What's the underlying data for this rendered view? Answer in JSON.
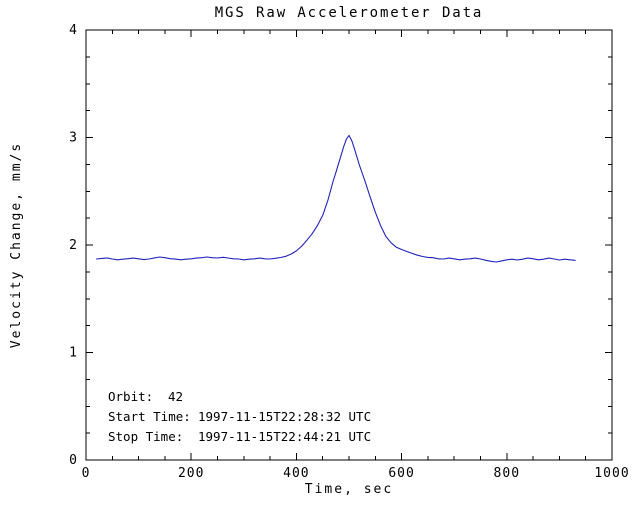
{
  "page": {
    "background": "#ffffff"
  },
  "chart_data": {
    "type": "line",
    "title": "MGS Raw Accelerometer Data",
    "xlabel": "Time, sec",
    "ylabel": "Velocity Change, mm/s",
    "xlim": [
      0,
      1000
    ],
    "ylim": [
      0,
      4
    ],
    "xticks": [
      0,
      200,
      400,
      600,
      800,
      1000
    ],
    "yticks": [
      0,
      1,
      2,
      3,
      4
    ],
    "x_minor_step": 50,
    "y_minor_step": 0.25,
    "axis_color": "#000000",
    "line_color": "#2222bb",
    "legend": "none",
    "grid": "off",
    "series": [
      {
        "name": "velocity_change",
        "points": [
          [
            20,
            1.87
          ],
          [
            30,
            1.875
          ],
          [
            40,
            1.88
          ],
          [
            50,
            1.87
          ],
          [
            60,
            1.862
          ],
          [
            70,
            1.868
          ],
          [
            80,
            1.873
          ],
          [
            90,
            1.878
          ],
          [
            100,
            1.872
          ],
          [
            110,
            1.864
          ],
          [
            120,
            1.87
          ],
          [
            130,
            1.88
          ],
          [
            140,
            1.888
          ],
          [
            150,
            1.882
          ],
          [
            160,
            1.873
          ],
          [
            170,
            1.869
          ],
          [
            180,
            1.862
          ],
          [
            190,
            1.868
          ],
          [
            200,
            1.872
          ],
          [
            210,
            1.878
          ],
          [
            220,
            1.882
          ],
          [
            230,
            1.888
          ],
          [
            240,
            1.882
          ],
          [
            250,
            1.879
          ],
          [
            260,
            1.886
          ],
          [
            270,
            1.879
          ],
          [
            280,
            1.872
          ],
          [
            290,
            1.87
          ],
          [
            300,
            1.862
          ],
          [
            310,
            1.868
          ],
          [
            320,
            1.872
          ],
          [
            330,
            1.878
          ],
          [
            340,
            1.872
          ],
          [
            350,
            1.87
          ],
          [
            360,
            1.876
          ],
          [
            370,
            1.884
          ],
          [
            380,
            1.895
          ],
          [
            390,
            1.915
          ],
          [
            400,
            1.945
          ],
          [
            410,
            1.99
          ],
          [
            420,
            2.045
          ],
          [
            430,
            2.105
          ],
          [
            440,
            2.18
          ],
          [
            450,
            2.275
          ],
          [
            460,
            2.42
          ],
          [
            470,
            2.595
          ],
          [
            475,
            2.675
          ],
          [
            480,
            2.755
          ],
          [
            485,
            2.835
          ],
          [
            490,
            2.915
          ],
          [
            495,
            2.985
          ],
          [
            500,
            3.02
          ],
          [
            505,
            2.975
          ],
          [
            510,
            2.9
          ],
          [
            515,
            2.82
          ],
          [
            520,
            2.74
          ],
          [
            530,
            2.6
          ],
          [
            540,
            2.45
          ],
          [
            550,
            2.305
          ],
          [
            560,
            2.18
          ],
          [
            570,
            2.08
          ],
          [
            580,
            2.02
          ],
          [
            590,
            1.98
          ],
          [
            600,
            1.958
          ],
          [
            610,
            1.94
          ],
          [
            620,
            1.922
          ],
          [
            630,
            1.905
          ],
          [
            640,
            1.893
          ],
          [
            650,
            1.885
          ],
          [
            660,
            1.882
          ],
          [
            670,
            1.872
          ],
          [
            680,
            1.87
          ],
          [
            690,
            1.878
          ],
          [
            700,
            1.872
          ],
          [
            710,
            1.862
          ],
          [
            720,
            1.868
          ],
          [
            730,
            1.872
          ],
          [
            740,
            1.878
          ],
          [
            750,
            1.87
          ],
          [
            760,
            1.858
          ],
          [
            770,
            1.848
          ],
          [
            780,
            1.842
          ],
          [
            790,
            1.852
          ],
          [
            800,
            1.862
          ],
          [
            810,
            1.868
          ],
          [
            820,
            1.86
          ],
          [
            830,
            1.868
          ],
          [
            840,
            1.878
          ],
          [
            850,
            1.872
          ],
          [
            860,
            1.862
          ],
          [
            870,
            1.868
          ],
          [
            880,
            1.878
          ],
          [
            890,
            1.87
          ],
          [
            900,
            1.86
          ],
          [
            910,
            1.868
          ],
          [
            920,
            1.862
          ],
          [
            930,
            1.858
          ]
        ]
      }
    ],
    "annotations": [
      {
        "label": "Orbit:",
        "value": "42"
      },
      {
        "label": "Start Time:",
        "value": "1997-11-15T22:28:32 UTC"
      },
      {
        "label": "Stop Time:",
        "value": "1997-11-15T22:44:21 UTC"
      }
    ]
  }
}
